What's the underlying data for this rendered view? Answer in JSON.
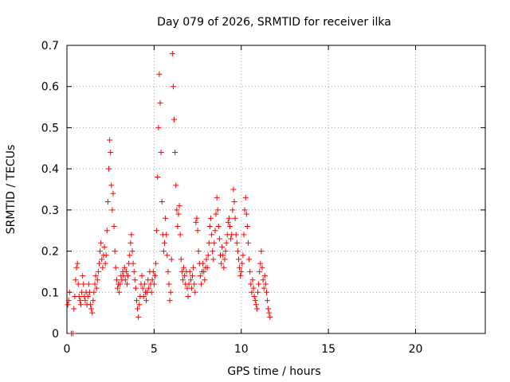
{
  "chart_data": {
    "type": "scatter",
    "title": "Day 079 of 2026, SRMTID for receiver ilka",
    "xlabel": "GPS time / hours",
    "ylabel": "SRMTID / TECUs",
    "xlim": [
      0,
      24
    ],
    "ylim": [
      0,
      0.7
    ],
    "xticks": [
      0,
      5,
      10,
      15,
      20
    ],
    "yticks": [
      0,
      0.1,
      0.2,
      0.3,
      0.4,
      0.5,
      0.6,
      0.7
    ],
    "xtick_labels": [
      "0",
      "5",
      "10",
      "15",
      "20"
    ],
    "ytick_labels": [
      "0",
      "0.1",
      "0.2",
      "0.3",
      "0.4",
      "0.5",
      "0.6",
      "0.7"
    ],
    "grid": true,
    "marker": "+",
    "marker_color": "#ff0000",
    "series": [
      {
        "name": "SRMTID",
        "points": [
          [
            0.05,
            0.07
          ],
          [
            0.1,
            0.08
          ],
          [
            0.15,
            0.1
          ],
          [
            0.25,
            0.0
          ],
          [
            0.35,
            0.0
          ],
          [
            0.4,
            0.06
          ],
          [
            0.45,
            0.09
          ],
          [
            0.5,
            0.13
          ],
          [
            0.55,
            0.16
          ],
          [
            0.6,
            0.17
          ],
          [
            0.65,
            0.12
          ],
          [
            0.7,
            0.09
          ],
          [
            0.75,
            0.08
          ],
          [
            0.8,
            0.07
          ],
          [
            0.85,
            0.1
          ],
          [
            0.9,
            0.14
          ],
          [
            0.95,
            0.12
          ],
          [
            1.0,
            0.09
          ],
          [
            1.05,
            0.08
          ],
          [
            1.1,
            0.1
          ],
          [
            1.15,
            0.07
          ],
          [
            1.2,
            0.09
          ],
          [
            1.25,
            0.12
          ],
          [
            1.3,
            0.1
          ],
          [
            1.35,
            0.07
          ],
          [
            1.4,
            0.06
          ],
          [
            1.45,
            0.05
          ],
          [
            1.5,
            0.08
          ],
          [
            1.55,
            0.1
          ],
          [
            1.6,
            0.12
          ],
          [
            1.65,
            0.14
          ],
          [
            1.7,
            0.11
          ],
          [
            1.75,
            0.13
          ],
          [
            1.8,
            0.15
          ],
          [
            1.85,
            0.17
          ],
          [
            1.9,
            0.2
          ],
          [
            1.95,
            0.22
          ],
          [
            2.0,
            0.18
          ],
          [
            2.05,
            0.16
          ],
          [
            2.1,
            0.19
          ],
          [
            2.15,
            0.21
          ],
          [
            2.2,
            0.17
          ],
          [
            2.25,
            0.19
          ],
          [
            2.3,
            0.25
          ],
          [
            2.35,
            0.32
          ],
          [
            2.4,
            0.4
          ],
          [
            2.45,
            0.47
          ],
          [
            2.5,
            0.44
          ],
          [
            2.55,
            0.36
          ],
          [
            2.6,
            0.3
          ],
          [
            2.65,
            0.34
          ],
          [
            2.7,
            0.26
          ],
          [
            2.75,
            0.2
          ],
          [
            2.8,
            0.16
          ],
          [
            2.85,
            0.13
          ],
          [
            2.9,
            0.11
          ],
          [
            2.95,
            0.12
          ],
          [
            3.0,
            0.1
          ],
          [
            3.05,
            0.12
          ],
          [
            3.1,
            0.14
          ],
          [
            3.15,
            0.13
          ],
          [
            3.2,
            0.15
          ],
          [
            3.25,
            0.14
          ],
          [
            3.3,
            0.16
          ],
          [
            3.35,
            0.13
          ],
          [
            3.4,
            0.15
          ],
          [
            3.45,
            0.12
          ],
          [
            3.5,
            0.14
          ],
          [
            3.55,
            0.17
          ],
          [
            3.6,
            0.19
          ],
          [
            3.65,
            0.22
          ],
          [
            3.7,
            0.24
          ],
          [
            3.75,
            0.2
          ],
          [
            3.8,
            0.17
          ],
          [
            3.85,
            0.15
          ],
          [
            3.9,
            0.13
          ],
          [
            3.95,
            0.11
          ],
          [
            4.0,
            0.08
          ],
          [
            4.05,
            0.06
          ],
          [
            4.1,
            0.04
          ],
          [
            4.15,
            0.07
          ],
          [
            4.2,
            0.09
          ],
          [
            4.25,
            0.12
          ],
          [
            4.3,
            0.14
          ],
          [
            4.35,
            0.11
          ],
          [
            4.4,
            0.09
          ],
          [
            4.45,
            0.12
          ],
          [
            4.5,
            0.1
          ],
          [
            4.55,
            0.08
          ],
          [
            4.6,
            0.1
          ],
          [
            4.65,
            0.13
          ],
          [
            4.7,
            0.11
          ],
          [
            4.75,
            0.15
          ],
          [
            4.8,
            0.12
          ],
          [
            4.85,
            0.1
          ],
          [
            4.9,
            0.13
          ],
          [
            4.95,
            0.15
          ],
          [
            5.0,
            0.12
          ],
          [
            5.05,
            0.14
          ],
          [
            5.1,
            0.17
          ],
          [
            5.15,
            0.25
          ],
          [
            5.2,
            0.38
          ],
          [
            5.25,
            0.5
          ],
          [
            5.3,
            0.63
          ],
          [
            5.35,
            0.56
          ],
          [
            5.4,
            0.44
          ],
          [
            5.45,
            0.32
          ],
          [
            5.5,
            0.24
          ],
          [
            5.55,
            0.2
          ],
          [
            5.6,
            0.22
          ],
          [
            5.65,
            0.28
          ],
          [
            5.7,
            0.24
          ],
          [
            5.75,
            0.19
          ],
          [
            5.8,
            0.15
          ],
          [
            5.85,
            0.12
          ],
          [
            5.9,
            0.08
          ],
          [
            5.95,
            0.1
          ],
          [
            6.0,
            0.18
          ],
          [
            6.05,
            0.68
          ],
          [
            6.1,
            0.6
          ],
          [
            6.15,
            0.52
          ],
          [
            6.2,
            0.44
          ],
          [
            6.25,
            0.36
          ],
          [
            6.3,
            0.3
          ],
          [
            6.35,
            0.26
          ],
          [
            6.4,
            0.29
          ],
          [
            6.45,
            0.31
          ],
          [
            6.5,
            0.24
          ],
          [
            6.55,
            0.18
          ],
          [
            6.6,
            0.15
          ],
          [
            6.65,
            0.13
          ],
          [
            6.7,
            0.16
          ],
          [
            6.75,
            0.14
          ],
          [
            6.8,
            0.12
          ],
          [
            6.85,
            0.15
          ],
          [
            6.9,
            0.11
          ],
          [
            6.95,
            0.09
          ],
          [
            7.0,
            0.12
          ],
          [
            7.05,
            0.15
          ],
          [
            7.1,
            0.13
          ],
          [
            7.15,
            0.11
          ],
          [
            7.2,
            0.14
          ],
          [
            7.25,
            0.16
          ],
          [
            7.3,
            0.12
          ],
          [
            7.35,
            0.1
          ],
          [
            7.4,
            0.27
          ],
          [
            7.45,
            0.28
          ],
          [
            7.5,
            0.25
          ],
          [
            7.55,
            0.2
          ],
          [
            7.6,
            0.17
          ],
          [
            7.65,
            0.14
          ],
          [
            7.7,
            0.12
          ],
          [
            7.75,
            0.15
          ],
          [
            7.8,
            0.17
          ],
          [
            7.85,
            0.15
          ],
          [
            7.9,
            0.13
          ],
          [
            7.95,
            0.16
          ],
          [
            8.0,
            0.18
          ],
          [
            8.05,
            0.16
          ],
          [
            8.1,
            0.19
          ],
          [
            8.15,
            0.22
          ],
          [
            8.2,
            0.26
          ],
          [
            8.25,
            0.28
          ],
          [
            8.3,
            0.24
          ],
          [
            8.35,
            0.2
          ],
          [
            8.4,
            0.18
          ],
          [
            8.45,
            0.22
          ],
          [
            8.5,
            0.25
          ],
          [
            8.55,
            0.29
          ],
          [
            8.6,
            0.33
          ],
          [
            8.65,
            0.3
          ],
          [
            8.7,
            0.26
          ],
          [
            8.75,
            0.23
          ],
          [
            8.8,
            0.19
          ],
          [
            8.85,
            0.17
          ],
          [
            8.9,
            0.21
          ],
          [
            8.95,
            0.19
          ],
          [
            9.0,
            0.16
          ],
          [
            9.05,
            0.18
          ],
          [
            9.1,
            0.2
          ],
          [
            9.15,
            0.22
          ],
          [
            9.2,
            0.24
          ],
          [
            9.25,
            0.27
          ],
          [
            9.3,
            0.28
          ],
          [
            9.35,
            0.26
          ],
          [
            9.4,
            0.23
          ],
          [
            9.45,
            0.24
          ],
          [
            9.5,
            0.3
          ],
          [
            9.55,
            0.35
          ],
          [
            9.6,
            0.32
          ],
          [
            9.65,
            0.28
          ],
          [
            9.7,
            0.24
          ],
          [
            9.75,
            0.22
          ],
          [
            9.8,
            0.2
          ],
          [
            9.85,
            0.18
          ],
          [
            9.9,
            0.16
          ],
          [
            9.95,
            0.14
          ],
          [
            10.0,
            0.15
          ],
          [
            10.05,
            0.17
          ],
          [
            10.1,
            0.19
          ],
          [
            10.15,
            0.24
          ],
          [
            10.2,
            0.3
          ],
          [
            10.25,
            0.33
          ],
          [
            10.3,
            0.29
          ],
          [
            10.35,
            0.26
          ],
          [
            10.4,
            0.22
          ],
          [
            10.45,
            0.18
          ],
          [
            10.5,
            0.15
          ],
          [
            10.55,
            0.12
          ],
          [
            10.6,
            0.1
          ],
          [
            10.65,
            0.13
          ],
          [
            10.7,
            0.11
          ],
          [
            10.75,
            0.09
          ],
          [
            10.8,
            0.08
          ],
          [
            10.85,
            0.07
          ],
          [
            10.9,
            0.06
          ],
          [
            10.95,
            0.1
          ],
          [
            11.0,
            0.12
          ],
          [
            11.05,
            0.15
          ],
          [
            11.1,
            0.17
          ],
          [
            11.15,
            0.2
          ],
          [
            11.2,
            0.16
          ],
          [
            11.25,
            0.13
          ],
          [
            11.3,
            0.11
          ],
          [
            11.35,
            0.14
          ],
          [
            11.4,
            0.12
          ],
          [
            11.45,
            0.1
          ],
          [
            11.5,
            0.08
          ],
          [
            11.55,
            0.06
          ],
          [
            11.6,
            0.05
          ],
          [
            11.65,
            0.04
          ]
        ]
      }
    ]
  }
}
